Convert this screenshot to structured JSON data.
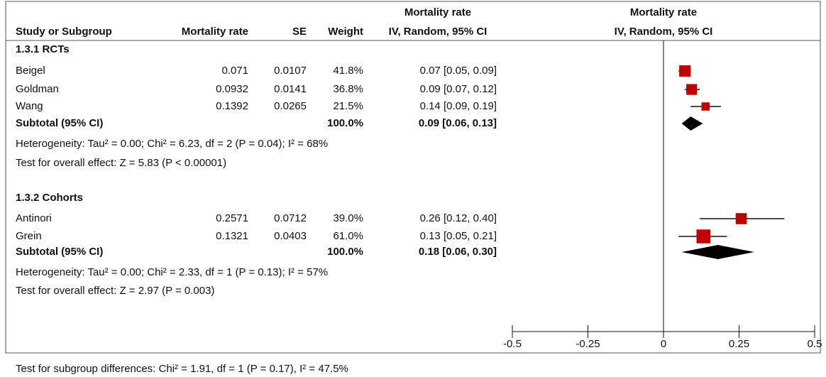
{
  "header": {
    "study": "Study or Subgroup",
    "rate": "Mortality rate",
    "se": "SE",
    "weight": "Weight",
    "ci_top": "Mortality rate",
    "ci_method": "IV, Random, 95% CI",
    "plot_top": "Mortality rate",
    "plot_method": "IV, Random, 95% CI"
  },
  "groups": [
    {
      "title": "1.3.1 RCTs",
      "studies": [
        {
          "name": "Beigel",
          "rate": 0.071,
          "se": 0.0107,
          "weight": {
            "value": 41.8,
            "label": "41.8%"
          },
          "ci": {
            "label": "0.07 [0.05, 0.09]",
            "lower": 0.05,
            "upper": 0.09
          }
        },
        {
          "name": "Goldman",
          "rate": 0.0932,
          "se": 0.0141,
          "weight": {
            "value": 36.8,
            "label": "36.8%"
          },
          "ci": {
            "label": "0.09 [0.07, 0.12]",
            "lower": 0.07,
            "upper": 0.12
          }
        },
        {
          "name": "Wang",
          "rate": 0.1392,
          "se": 0.0265,
          "weight": {
            "value": 21.5,
            "label": "21.5%"
          },
          "ci": {
            "label": "0.14 [0.09, 0.19]",
            "lower": 0.09,
            "upper": 0.19
          }
        }
      ],
      "subtotal": {
        "name": "Subtotal (95% CI)",
        "weight": "100.0%",
        "ci": {
          "label": "0.09 [0.06, 0.13]",
          "estimate": 0.09,
          "lower": 0.06,
          "upper": 0.13
        }
      },
      "heterogeneity": "Heterogeneity: Tau² = 0.00; Chi² = 6.23, df = 2 (P = 0.04); I² = 68%",
      "overall": "Test for overall effect: Z = 5.83 (P < 0.00001)"
    },
    {
      "title": "1.3.2 Cohorts",
      "studies": [
        {
          "name": "Antinori",
          "rate": 0.2571,
          "se": 0.0712,
          "weight": {
            "value": 39.0,
            "label": "39.0%"
          },
          "ci": {
            "label": "0.26 [0.12, 0.40]",
            "lower": 0.12,
            "upper": 0.4
          }
        },
        {
          "name": "Grein",
          "rate": 0.1321,
          "se": 0.0403,
          "weight": {
            "value": 61.0,
            "label": "61.0%"
          },
          "ci": {
            "label": "0.13 [0.05, 0.21]",
            "lower": 0.05,
            "upper": 0.21
          }
        }
      ],
      "subtotal": {
        "name": "Subtotal (95% CI)",
        "weight": "100.0%",
        "ci": {
          "label": "0.18 [0.06, 0.30]",
          "estimate": 0.18,
          "lower": 0.06,
          "upper": 0.3
        }
      },
      "heterogeneity": "Heterogeneity: Tau² = 0.00; Chi² = 2.33, df = 1 (P = 0.13); I² = 57%",
      "overall": "Test for overall effect: Z = 2.97 (P = 0.003)"
    }
  ],
  "plot": {
    "xlim": [
      -0.5,
      0.5
    ],
    "xticks": [
      -0.5,
      -0.25,
      0,
      0.25,
      0.5
    ],
    "color": "#c00000"
  },
  "footer": "Test for subgroup differences: Chi² = 1.91, df = 1 (P = 0.17), I² = 47.5%"
}
